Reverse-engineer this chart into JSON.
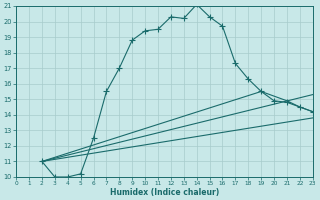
{
  "xlabel": "Humidex (Indice chaleur)",
  "background_color": "#c8e8e8",
  "grid_color": "#a8cccc",
  "line_color": "#1a6b6b",
  "xlim": [
    0,
    23
  ],
  "ylim": [
    10,
    21
  ],
  "xticks": [
    0,
    1,
    2,
    3,
    4,
    5,
    6,
    7,
    8,
    9,
    10,
    11,
    12,
    13,
    14,
    15,
    16,
    17,
    18,
    19,
    20,
    21,
    22,
    23
  ],
  "yticks": [
    10,
    11,
    12,
    13,
    14,
    15,
    16,
    17,
    18,
    19,
    20,
    21
  ],
  "line1_x": [
    2,
    3,
    4,
    5,
    6,
    7,
    8,
    9,
    10,
    11,
    12,
    13,
    14,
    15,
    16,
    17,
    18,
    19,
    20,
    21,
    22,
    23
  ],
  "line1_y": [
    11.0,
    10.0,
    10.0,
    10.2,
    12.5,
    15.5,
    17.0,
    18.8,
    19.4,
    19.5,
    20.3,
    20.2,
    21.1,
    20.3,
    19.7,
    17.3,
    16.3,
    15.5,
    14.9,
    14.8,
    14.5,
    14.2
  ],
  "line2_x": [
    2,
    23
  ],
  "line2_y": [
    11.0,
    15.3
  ],
  "line3_x": [
    2,
    19,
    21,
    22,
    23
  ],
  "line3_y": [
    11.0,
    15.5,
    14.9,
    14.5,
    14.2
  ],
  "line4_x": [
    2,
    23
  ],
  "line4_y": [
    11.0,
    13.8
  ]
}
